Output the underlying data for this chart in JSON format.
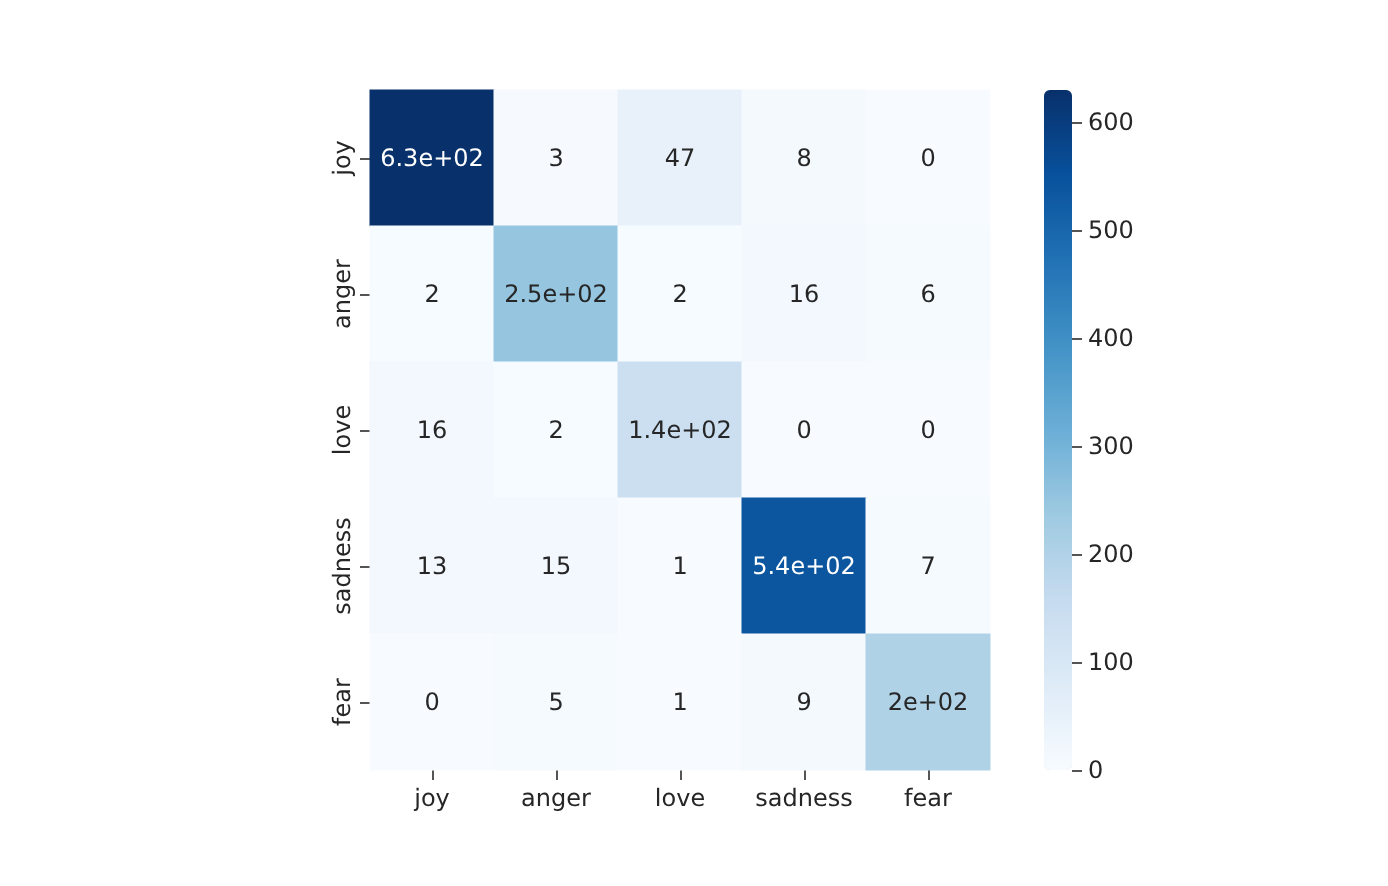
{
  "chart_data": {
    "type": "heatmap",
    "categories": [
      "joy",
      "anger",
      "love",
      "sadness",
      "fear"
    ],
    "y_categories": [
      "joy",
      "anger",
      "love",
      "sadness",
      "fear"
    ],
    "cells": [
      [
        630,
        3,
        47,
        8,
        0
      ],
      [
        2,
        250,
        2,
        16,
        6
      ],
      [
        16,
        2,
        140,
        0,
        0
      ],
      [
        13,
        15,
        1,
        540,
        7
      ],
      [
        0,
        5,
        1,
        9,
        200
      ]
    ],
    "cell_labels": [
      [
        "6.3e+02",
        "3",
        "47",
        "8",
        "0"
      ],
      [
        "2",
        "2.5e+02",
        "2",
        "16",
        "6"
      ],
      [
        "16",
        "2",
        "1.4e+02",
        "0",
        "0"
      ],
      [
        "13",
        "15",
        "1",
        "5.4e+02",
        "7"
      ],
      [
        "0",
        "5",
        "1",
        "9",
        "2e+02"
      ]
    ],
    "clim": [
      0,
      630
    ],
    "cticks": [
      0,
      100,
      200,
      300,
      400,
      500,
      600
    ]
  }
}
